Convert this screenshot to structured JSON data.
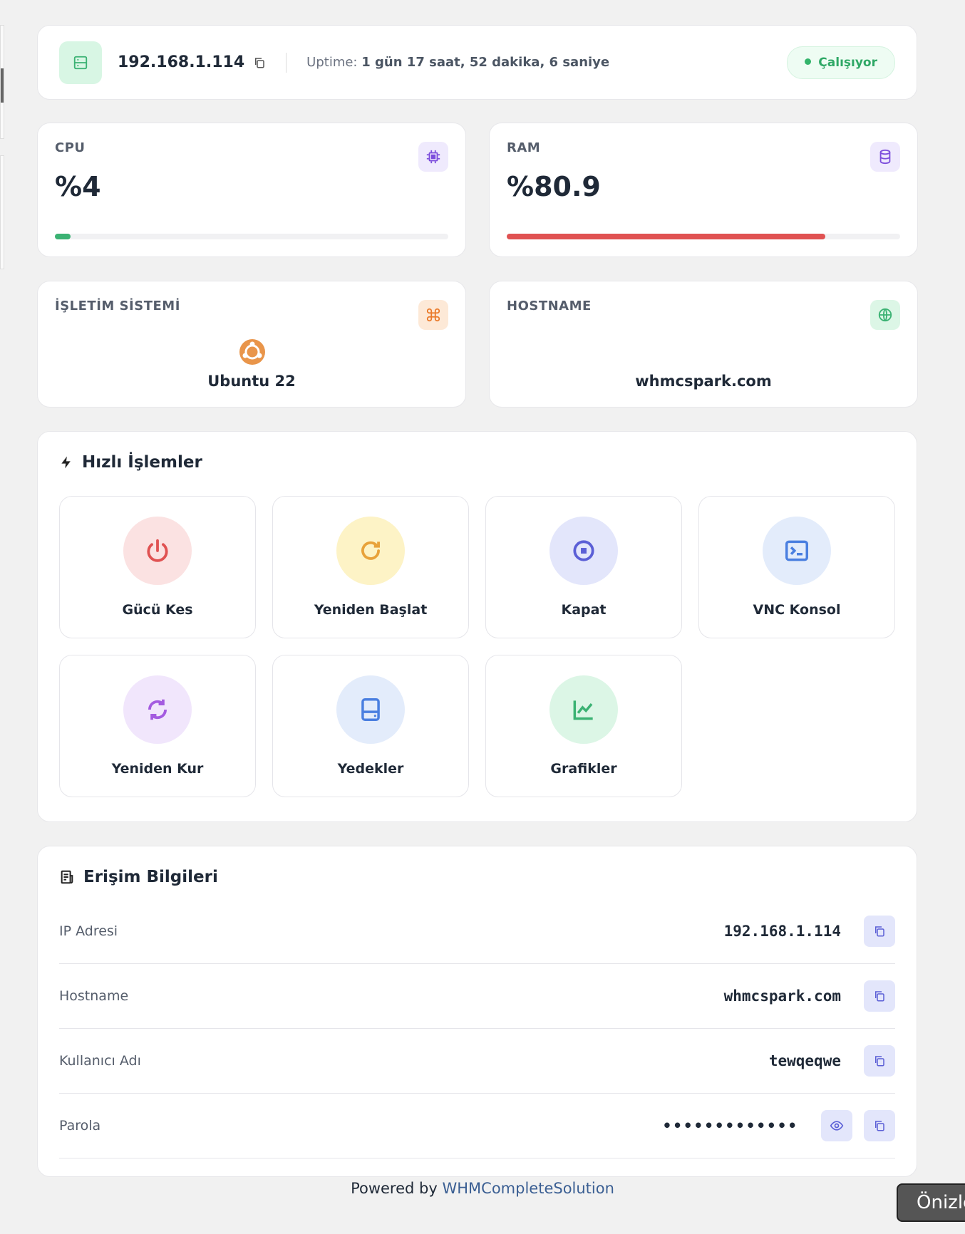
{
  "header": {
    "ip": "192.168.1.114",
    "uptime_label": "Uptime:",
    "uptime": "1 gün 17 saat, 52 dakika, 6 saniye",
    "status": "Çalışıyor"
  },
  "stats": {
    "cpu": {
      "label": "CPU",
      "value": 4,
      "value_label": "%4"
    },
    "ram": {
      "label": "RAM",
      "value": 80.9,
      "value_label": "%80.9"
    }
  },
  "info": {
    "os": {
      "label": "İŞLETİM SİSTEMİ",
      "value": "Ubuntu 22"
    },
    "hostname": {
      "label": "HOSTNAME",
      "value": "whmcspark.com"
    }
  },
  "actions": {
    "title": "Hızlı İşlemler",
    "items": [
      "Gücü Kes",
      "Yeniden Başlat",
      "Kapat",
      "VNC Konsol",
      "Yeniden Kur",
      "Yedekler",
      "Grafikler"
    ]
  },
  "access": {
    "title": "Erişim Bilgileri",
    "rows": [
      [
        "IP Adresi",
        "192.168.1.114"
      ],
      [
        "Hostname",
        "whmcspark.com"
      ],
      [
        "Kullanıcı Adı",
        "tewqeqwe"
      ],
      [
        "Parola",
        "•••••••••••••"
      ]
    ]
  },
  "footer": {
    "prefix": "Powered by",
    "link": "WHMCompleteSolution"
  },
  "tooltip": "Önizle"
}
